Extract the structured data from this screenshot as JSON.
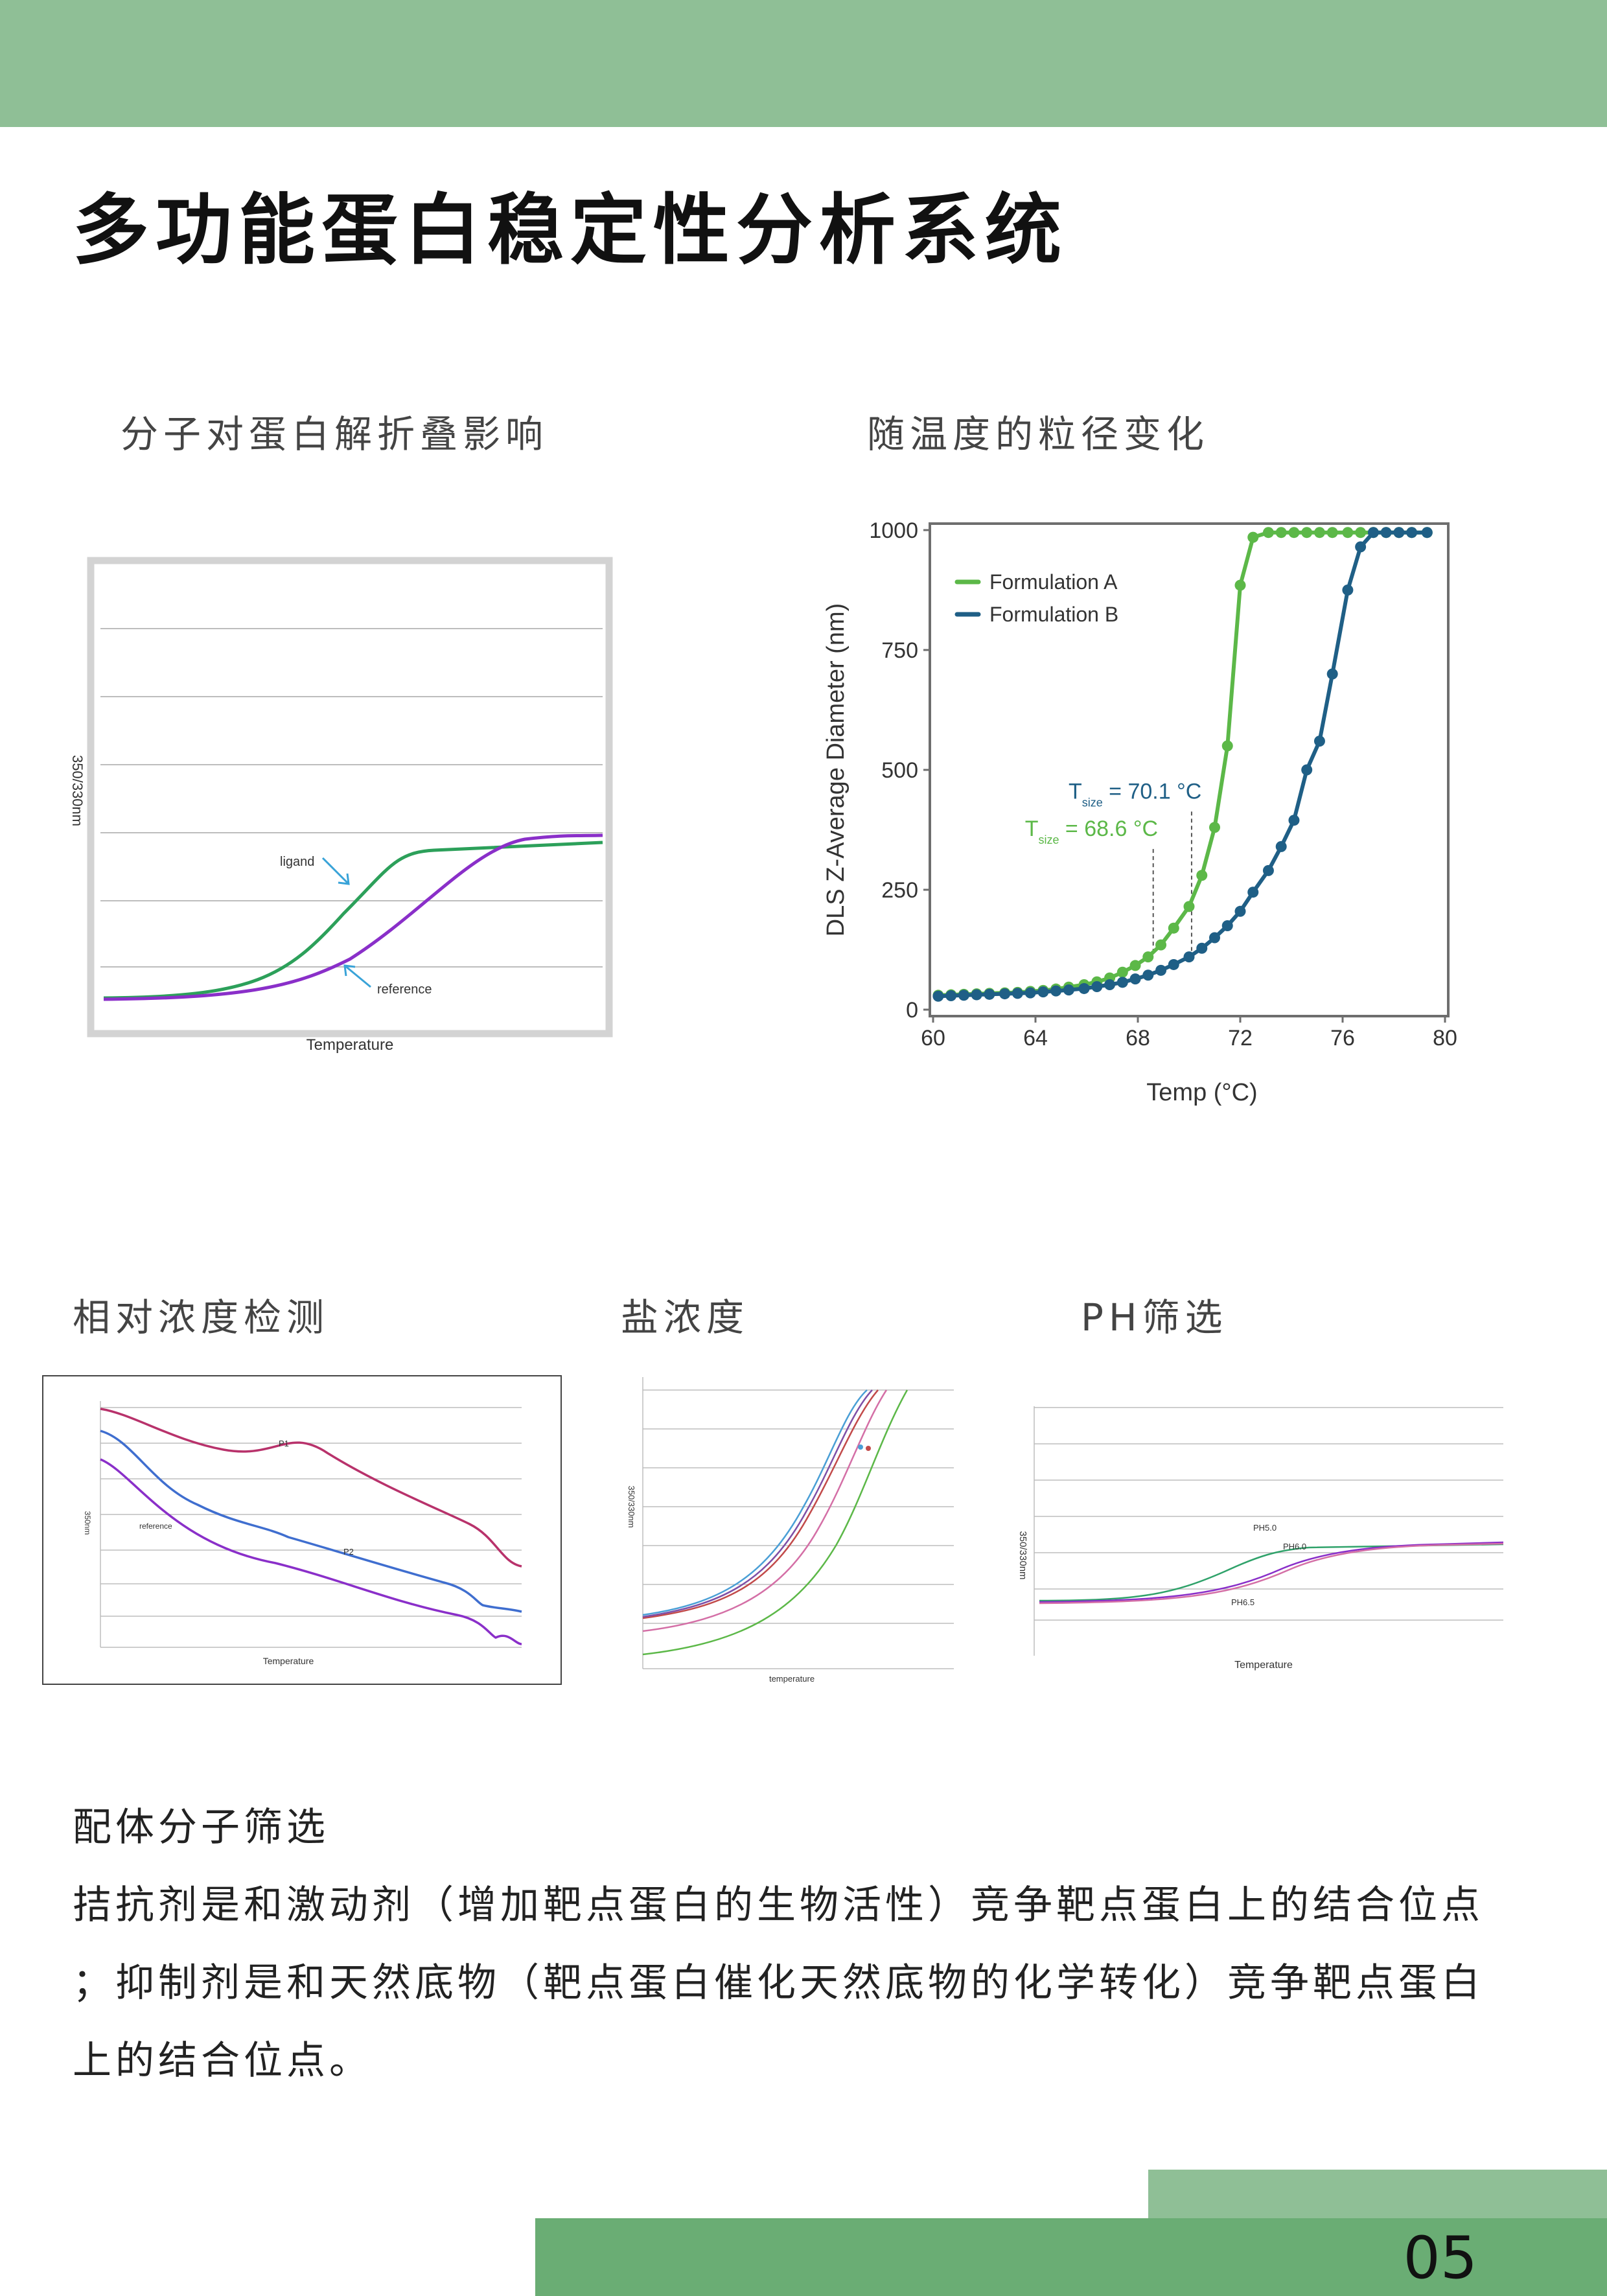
{
  "title": "多功能蛋白稳定性分析系统",
  "sections": {
    "unfolding": "分子对蛋白解折叠影响",
    "particle": "随温度的粒径变化",
    "concentration": "相对浓度检测",
    "salt": "盐浓度",
    "ph": "PH筛选"
  },
  "figures": {
    "unfolding": {
      "ylabel": "350/330nm",
      "xlabel": "Temperature",
      "ligand": "ligand",
      "reference": "reference"
    },
    "concentration": {
      "ylabel": "350nm",
      "xlabel": "Temperature",
      "p1": "P1",
      "p2": "P2",
      "reference": "reference"
    },
    "salt": {
      "ylabel": "350/330nm",
      "xlabel": "temperature"
    },
    "ph": {
      "ylabel": "350/330nm",
      "xlabel": "Temperature",
      "ph50": "PH5.0",
      "ph60": "PH6.0",
      "ph65": "PH6.5"
    }
  },
  "chart_data": {
    "type": "line",
    "title": "",
    "xlabel": "Temp (°C)",
    "ylabel": "DLS Z-Average Diameter (nm)",
    "xlim": [
      60,
      80
    ],
    "ylim": [
      0,
      1000
    ],
    "xticks": [
      60,
      64,
      68,
      72,
      76,
      80
    ],
    "yticks": [
      0,
      250,
      500,
      750,
      1000
    ],
    "legend": "top-left",
    "annotations": [
      {
        "label": "T",
        "sub": "size",
        "text": " = 70.1 °C",
        "x": 70.1,
        "color": "#1f5f86"
      },
      {
        "label": "T",
        "sub": "size",
        "text": " = 68.6 °C",
        "x": 68.6,
        "color": "#5cb848"
      }
    ],
    "series": [
      {
        "name": "Formulation A",
        "color": "#5cb848",
        "x": [
          60.2,
          60.7,
          61.2,
          61.7,
          62.2,
          62.8,
          63.3,
          63.8,
          64.3,
          64.8,
          65.3,
          65.9,
          66.4,
          66.9,
          67.4,
          67.9,
          68.4,
          68.9,
          69.4,
          70.0,
          70.5,
          71.0,
          71.5,
          72.0,
          72.5,
          73.1,
          73.6,
          74.1,
          74.6,
          75.1,
          75.6,
          76.2,
          76.7,
          77.2,
          77.7,
          78.2,
          78.7,
          79.3
        ],
        "y": [
          30,
          31,
          32,
          33,
          34,
          35,
          36,
          38,
          40,
          43,
          47,
          52,
          58,
          66,
          78,
          92,
          110,
          135,
          170,
          215,
          280,
          380,
          550,
          885,
          985,
          995,
          995,
          995,
          995,
          995,
          995,
          995,
          995,
          995,
          995,
          995,
          995,
          995
        ]
      },
      {
        "name": "Formulation B",
        "color": "#1f5f86",
        "x": [
          60.2,
          60.7,
          61.2,
          61.7,
          62.2,
          62.8,
          63.3,
          63.8,
          64.3,
          64.8,
          65.3,
          65.9,
          66.4,
          66.9,
          67.4,
          67.9,
          68.4,
          68.9,
          69.4,
          70.0,
          70.5,
          71.0,
          71.5,
          72.0,
          72.5,
          73.1,
          73.6,
          74.1,
          74.6,
          75.1,
          75.6,
          76.2,
          76.7,
          77.2,
          77.7,
          78.2,
          78.7,
          79.3
        ],
        "y": [
          28,
          29,
          30,
          31,
          32,
          33,
          34,
          35,
          37,
          39,
          41,
          44,
          48,
          52,
          57,
          64,
          72,
          82,
          94,
          110,
          128,
          150,
          175,
          205,
          245,
          290,
          340,
          395,
          500,
          560,
          700,
          875,
          965,
          995,
          995,
          995,
          995,
          995
        ]
      }
    ]
  },
  "paragraph": [
    "配体分子筛选",
    "拮抗剂是和激动剂（增加靶点蛋白的生物活性）竞争靶点蛋白上的结合位点",
    "；抑制剂是和天然底物（靶点蛋白催化天然底物的化学转化）竞争靶点蛋白",
    "上的结合位点。"
  ],
  "page_number": "05",
  "colors": {
    "green_light": "#8fbf96",
    "green_dark": "#6aad74",
    "curve_green": "#2ca05a",
    "curve_purple": "#8a2fc9",
    "arrow_blue": "#39a3d8"
  }
}
